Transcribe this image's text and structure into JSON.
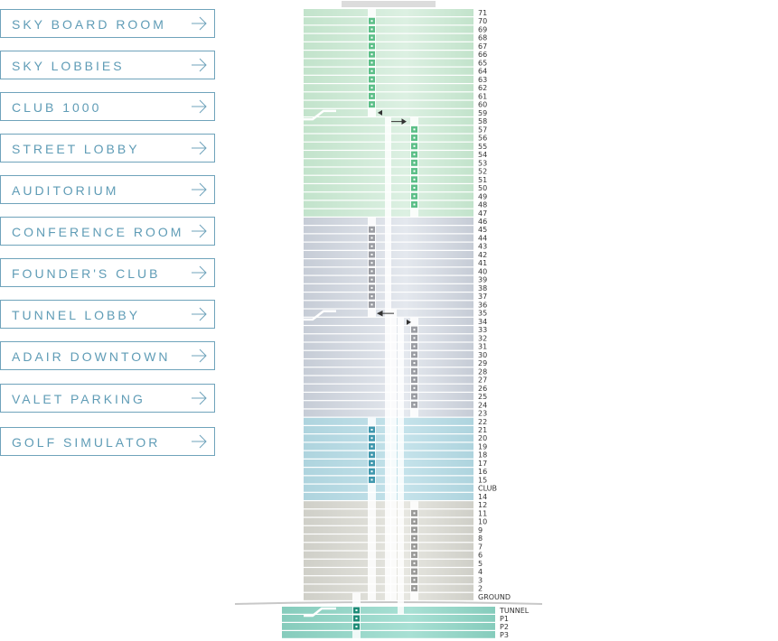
{
  "menu": [
    {
      "label": "SKY BOARD ROOM"
    },
    {
      "label": "SKY LOBBIES"
    },
    {
      "label": "CLUB 1000"
    },
    {
      "label": "STREET LOBBY"
    },
    {
      "label": "AUDITORIUM"
    },
    {
      "label": "CONFERENCE ROOM"
    },
    {
      "label": "FOUNDER'S CLUB"
    },
    {
      "label": "TUNNEL LOBBY"
    },
    {
      "label": "ADAIR DOWNTOWN"
    },
    {
      "label": "VALET PARKING"
    },
    {
      "label": "GOLF SIMULATOR"
    }
  ],
  "icons": {
    "menu_arrow": "arrow-right-icon"
  },
  "floors": [
    "71",
    "70",
    "69",
    "68",
    "67",
    "66",
    "65",
    "64",
    "63",
    "62",
    "61",
    "60",
    "59",
    "58",
    "57",
    "56",
    "55",
    "54",
    "53",
    "52",
    "51",
    "50",
    "49",
    "48",
    "47",
    "46",
    "45",
    "44",
    "43",
    "42",
    "41",
    "40",
    "39",
    "38",
    "37",
    "36",
    "35",
    "34",
    "33",
    "32",
    "31",
    "30",
    "29",
    "28",
    "27",
    "26",
    "25",
    "24",
    "23",
    "22",
    "21",
    "20",
    "19",
    "18",
    "17",
    "16",
    "15",
    "CLUB",
    "14",
    "12",
    "11",
    "10",
    "9",
    "8",
    "7",
    "6",
    "5",
    "4",
    "3",
    "2",
    "GROUND"
  ],
  "basement_floors": [
    "TUNNEL",
    "P1",
    "P2",
    "P3"
  ],
  "zones": [
    {
      "from": "71",
      "to": "47",
      "color_a": "#c2e3cb",
      "color_b": "#dcf0e2",
      "stop_color": "#5cbf88"
    },
    {
      "from": "46",
      "to": "23",
      "color_a": "#c6ccd6",
      "color_b": "#e4e8ee",
      "stop_color": "#9a9ca2"
    },
    {
      "from": "22",
      "to": "14",
      "color_a": "#aed4de",
      "color_b": "#c4e2ea",
      "stop_color": "#3f97ad"
    },
    {
      "from": "12",
      "to": "GROUND",
      "color_a": "#cfcfc8",
      "color_b": "#e6e6e0",
      "stop_color": "#9a9a98"
    },
    {
      "from": "TUNNEL",
      "to": "P3",
      "color_a": "#86ccbc",
      "color_b": "#a8e0d4",
      "stop_color": "#1f8c78"
    }
  ],
  "elevator_stops": [
    {
      "shaft": "A",
      "floors": [
        "70",
        "69",
        "68",
        "67",
        "66",
        "65",
        "64",
        "63",
        "62",
        "61",
        "60"
      ],
      "zone": 0
    },
    {
      "shaft": "B",
      "floors": [
        "57",
        "56",
        "55",
        "54",
        "53",
        "52",
        "51",
        "50",
        "49",
        "48"
      ],
      "zone": 0
    },
    {
      "shaft": "A",
      "floors": [
        "45",
        "44",
        "43",
        "42",
        "41",
        "40",
        "39",
        "38",
        "37",
        "36"
      ],
      "zone": 1
    },
    {
      "shaft": "B",
      "floors": [
        "33",
        "32",
        "31",
        "30",
        "29",
        "28",
        "27",
        "26",
        "25",
        "24"
      ],
      "zone": 1
    },
    {
      "shaft": "A",
      "floors": [
        "21",
        "20",
        "19",
        "18",
        "17",
        "16",
        "15"
      ],
      "zone": 2
    },
    {
      "shaft": "B",
      "floors": [
        "11",
        "10",
        "9",
        "8",
        "7",
        "6",
        "5",
        "4",
        "3",
        "2"
      ],
      "zone": 3
    },
    {
      "shaft": "C",
      "floors": [
        "TUNNEL",
        "P1",
        "P2"
      ],
      "zone": 4
    }
  ]
}
